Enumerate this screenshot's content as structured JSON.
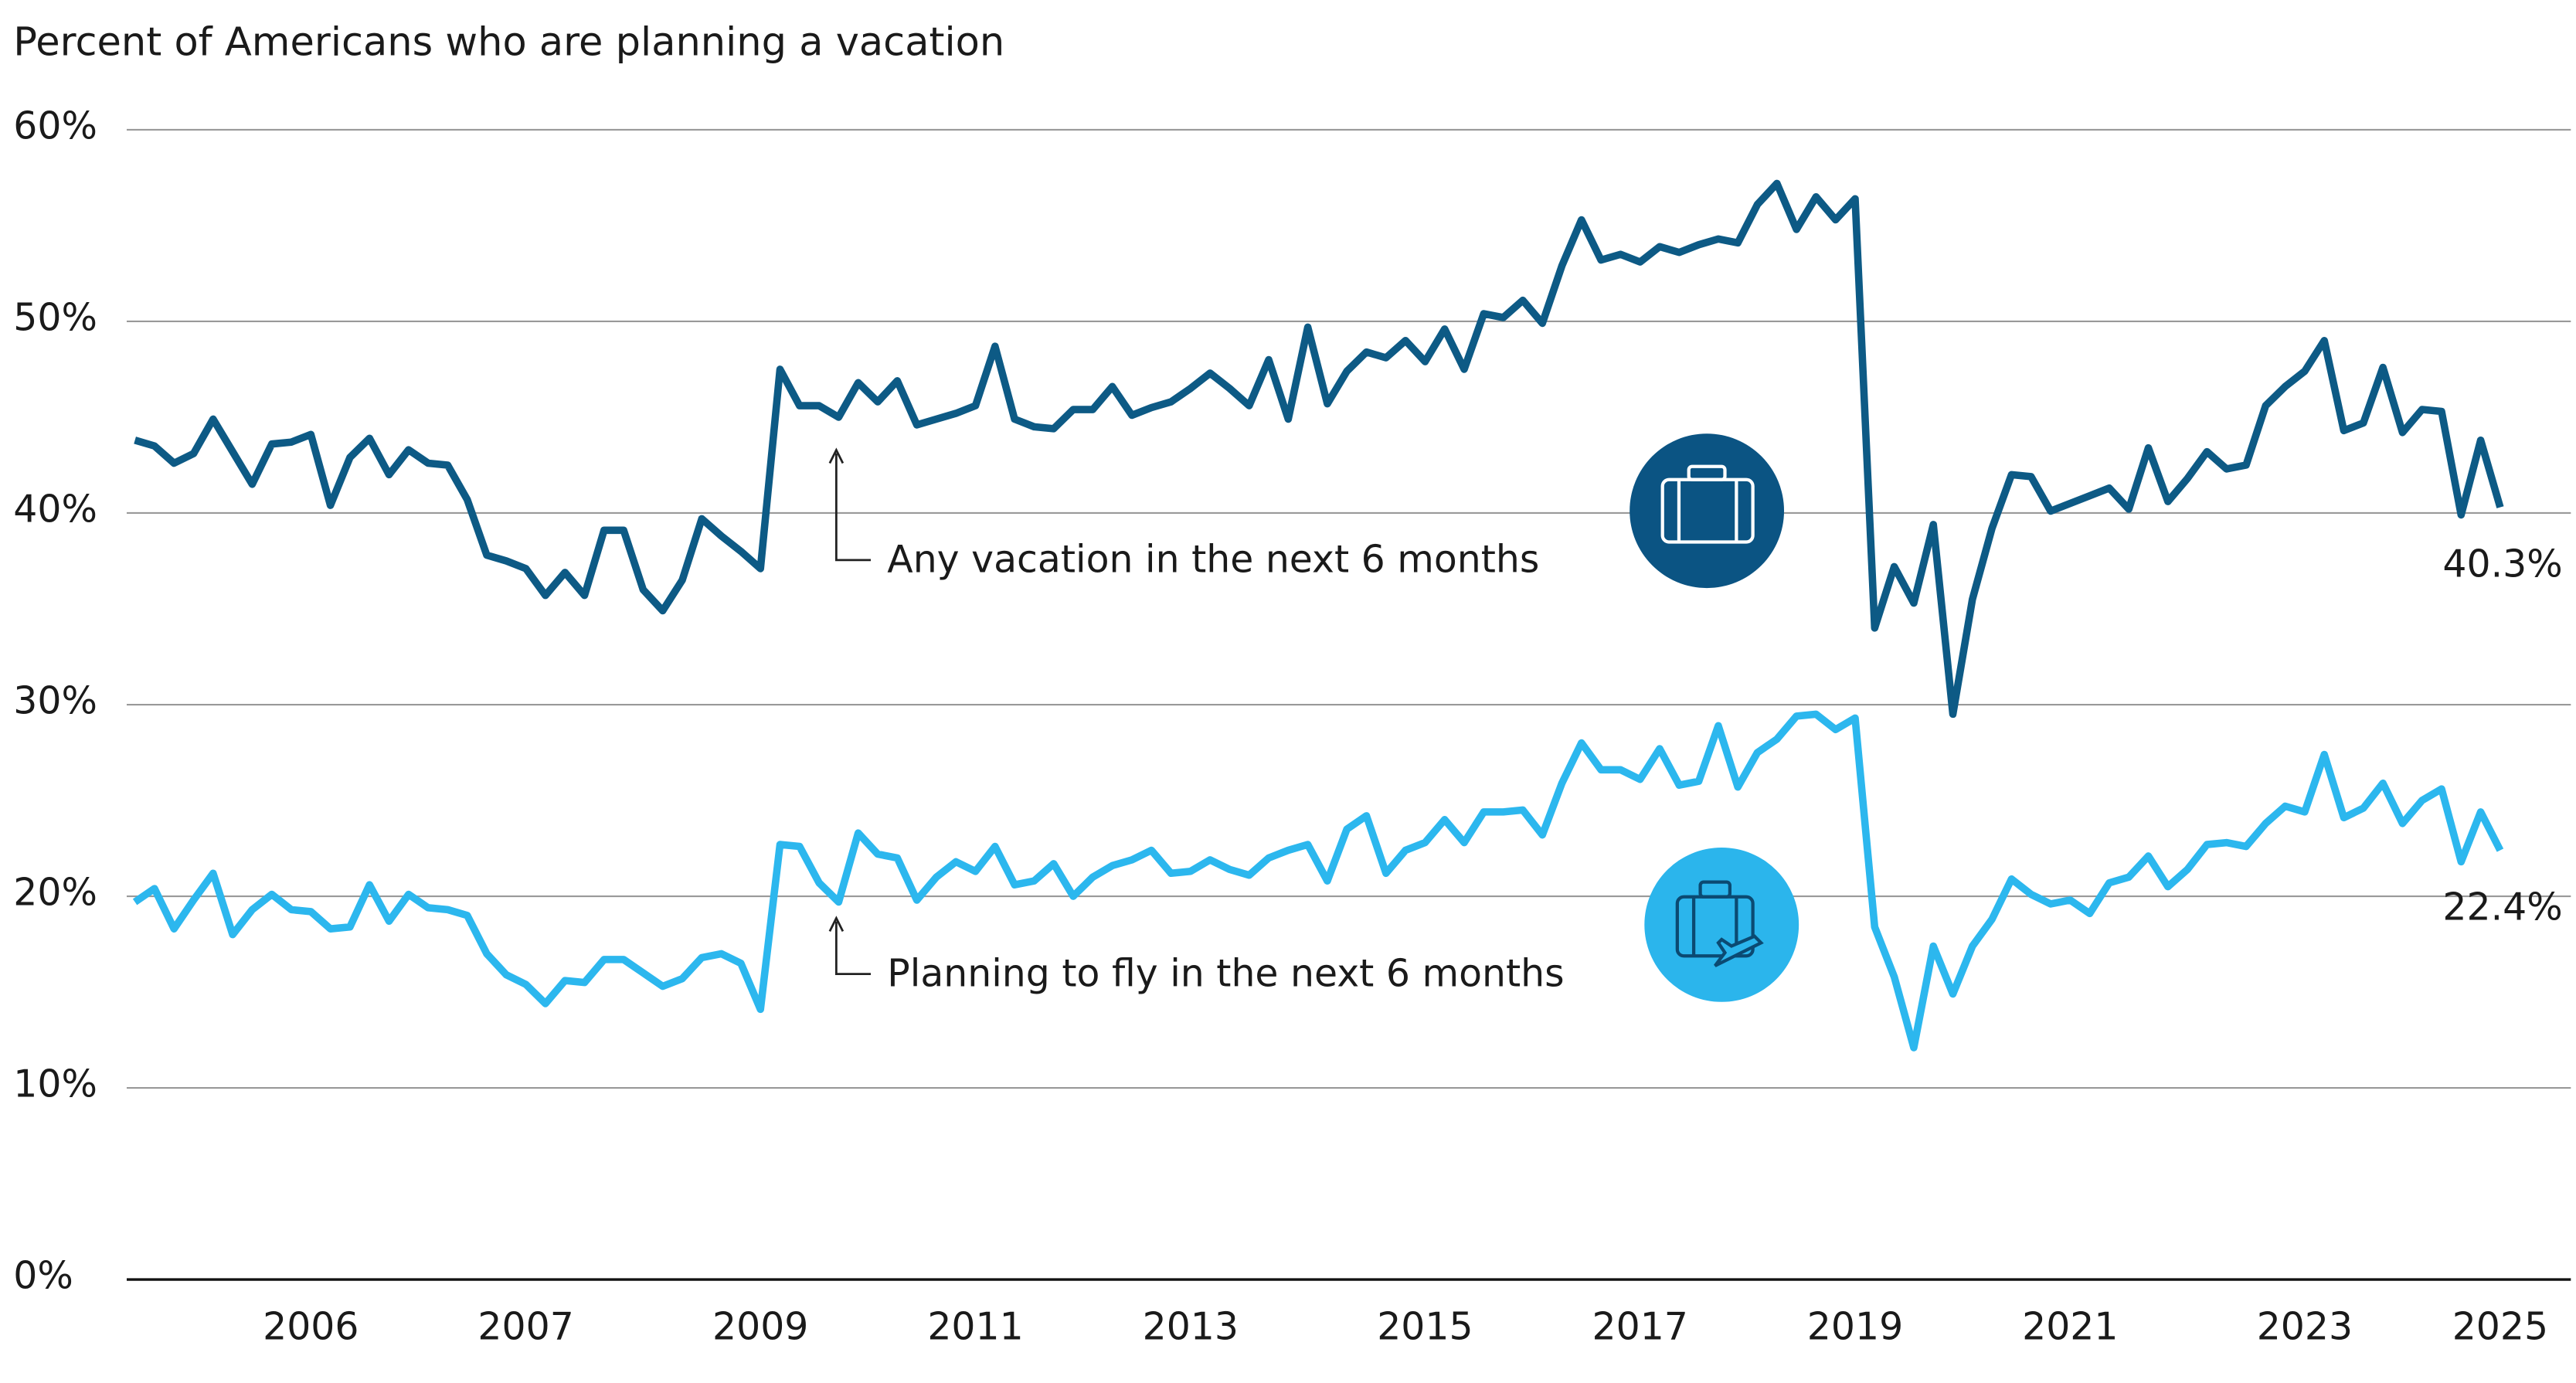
{
  "chart_data": {
    "type": "line",
    "title": "Percent of Americans who are planning a vacation",
    "categories": [
      null,
      null,
      null,
      null,
      null,
      null,
      null,
      null,
      null,
      "2006",
      null,
      null,
      null,
      null,
      null,
      null,
      null,
      null,
      null,
      null,
      "2007",
      null,
      null,
      null,
      null,
      null,
      null,
      null,
      null,
      null,
      null,
      null,
      "2009",
      null,
      null,
      null,
      null,
      null,
      null,
      null,
      null,
      null,
      null,
      "2011",
      null,
      null,
      null,
      null,
      null,
      null,
      null,
      null,
      null,
      null,
      "2013",
      null,
      null,
      null,
      null,
      null,
      null,
      null,
      null,
      null,
      null,
      null,
      "2015",
      null,
      null,
      null,
      null,
      null,
      null,
      null,
      null,
      null,
      null,
      "2017",
      null,
      null,
      null,
      null,
      null,
      null,
      null,
      null,
      null,
      null,
      "2019",
      null,
      null,
      null,
      null,
      null,
      null,
      null,
      null,
      null,
      null,
      "2021",
      null,
      null,
      null,
      null,
      null,
      null,
      null,
      null,
      null,
      null,
      null,
      "2023",
      null,
      null,
      null,
      null,
      null,
      null,
      null,
      null,
      null,
      "2025"
    ],
    "series": [
      {
        "name": "Any vacation in the next 6 months",
        "color": "#0d5a85",
        "values": [
          43.8,
          43.5,
          42.6,
          43.1,
          44.9,
          43.2,
          41.5,
          43.6,
          43.7,
          44.1,
          40.4,
          42.9,
          43.9,
          42.0,
          43.3,
          42.6,
          42.5,
          40.7,
          37.8,
          37.5,
          37.1,
          35.7,
          36.9,
          35.7,
          39.1,
          39.1,
          36.0,
          34.9,
          36.5,
          39.7,
          38.8,
          38.0,
          37.1,
          47.5,
          45.6,
          45.6,
          45.0,
          46.8,
          45.8,
          46.9,
          44.6,
          44.9,
          45.2,
          45.6,
          48.7,
          44.9,
          44.5,
          44.4,
          45.4,
          45.4,
          46.6,
          45.1,
          45.5,
          45.8,
          46.5,
          47.3,
          46.5,
          45.6,
          48.0,
          44.9,
          49.7,
          45.7,
          47.4,
          48.4,
          48.1,
          49.0,
          47.9,
          49.6,
          47.5,
          50.4,
          50.2,
          51.1,
          49.9,
          52.9,
          55.3,
          53.2,
          53.5,
          53.1,
          53.9,
          53.6,
          54.0,
          54.3,
          54.1,
          56.1,
          57.2,
          54.8,
          56.5,
          55.3,
          56.4,
          34.0,
          37.2,
          35.3,
          39.4,
          29.5,
          35.5,
          39.2,
          42.0,
          41.9,
          40.1,
          40.5,
          40.9,
          41.3,
          40.2,
          43.4,
          40.6,
          41.8,
          43.2,
          42.3,
          42.5,
          45.6,
          46.6,
          47.4,
          49.0,
          44.3,
          44.7,
          47.6,
          44.2,
          45.4,
          45.3,
          39.9,
          43.8,
          40.3
        ],
        "value_labels": [
          null,
          null,
          null,
          null,
          null,
          null,
          null,
          null,
          null,
          null,
          null,
          null,
          null,
          null,
          null,
          null,
          null,
          null,
          null,
          null,
          null,
          null,
          null,
          null,
          null,
          null,
          null,
          null,
          null,
          null,
          null,
          null,
          null,
          null,
          null,
          null,
          null,
          null,
          null,
          null,
          null,
          null,
          null,
          null,
          null,
          null,
          null,
          null,
          null,
          null,
          null,
          null,
          null,
          null,
          null,
          null,
          null,
          null,
          null,
          null,
          null,
          null,
          null,
          null,
          null,
          null,
          null,
          null,
          null,
          null,
          null,
          null,
          null,
          null,
          null,
          null,
          null,
          null,
          null,
          null,
          null,
          null,
          null,
          null,
          null,
          null,
          null,
          null,
          null,
          null,
          null,
          null,
          null,
          null,
          null,
          null,
          null,
          null,
          null,
          null,
          null,
          null,
          null,
          null,
          null,
          null,
          null,
          null,
          null,
          null,
          null,
          null,
          null,
          null,
          null,
          null,
          null,
          null,
          null,
          null,
          null,
          "40.3%"
        ]
      },
      {
        "name": "Planning to fly in the next 6 months",
        "color": "#2cb7ee",
        "values": [
          19.7,
          20.4,
          18.3,
          19.8,
          21.2,
          18.0,
          19.3,
          20.1,
          19.3,
          19.2,
          18.3,
          18.4,
          20.6,
          18.7,
          20.1,
          19.4,
          19.3,
          19.0,
          17.0,
          15.9,
          15.4,
          14.4,
          15.6,
          15.5,
          16.7,
          16.7,
          16.0,
          15.3,
          15.7,
          16.8,
          17.0,
          16.5,
          14.1,
          22.7,
          22.6,
          20.7,
          19.7,
          23.3,
          22.2,
          22.0,
          19.8,
          21.0,
          21.8,
          21.3,
          22.6,
          20.6,
          20.8,
          21.7,
          20.0,
          21.0,
          21.6,
          21.9,
          22.4,
          21.2,
          21.3,
          21.9,
          21.4,
          21.1,
          22.0,
          22.4,
          22.7,
          20.8,
          23.5,
          24.2,
          21.2,
          22.4,
          22.8,
          24.0,
          22.8,
          24.4,
          24.4,
          24.5,
          23.2,
          25.9,
          28.0,
          26.6,
          26.6,
          26.1,
          27.7,
          25.8,
          26.0,
          28.9,
          25.7,
          27.5,
          28.2,
          29.4,
          29.5,
          28.7,
          29.3,
          18.4,
          15.8,
          12.1,
          17.4,
          14.9,
          17.4,
          18.8,
          20.9,
          20.1,
          19.6,
          19.8,
          19.1,
          20.7,
          21.0,
          22.1,
          20.5,
          21.4,
          22.7,
          22.8,
          22.6,
          23.8,
          24.7,
          24.4,
          27.4,
          24.1,
          24.6,
          25.9,
          23.8,
          25.0,
          25.6,
          21.8,
          24.4,
          22.4
        ],
        "value_labels": [
          null,
          null,
          null,
          null,
          null,
          null,
          null,
          null,
          null,
          null,
          null,
          null,
          null,
          null,
          null,
          null,
          null,
          null,
          null,
          null,
          null,
          null,
          null,
          null,
          null,
          null,
          null,
          null,
          null,
          null,
          null,
          null,
          null,
          null,
          null,
          null,
          null,
          null,
          null,
          null,
          null,
          null,
          null,
          null,
          null,
          null,
          null,
          null,
          null,
          null,
          null,
          null,
          null,
          null,
          null,
          null,
          null,
          null,
          null,
          null,
          null,
          null,
          null,
          null,
          null,
          null,
          null,
          null,
          null,
          null,
          null,
          null,
          null,
          null,
          null,
          null,
          null,
          null,
          null,
          null,
          null,
          null,
          null,
          null,
          null,
          null,
          null,
          null,
          null,
          null,
          null,
          null,
          null,
          null,
          null,
          null,
          null,
          null,
          null,
          null,
          null,
          null,
          null,
          null,
          null,
          null,
          null,
          null,
          null,
          null,
          null,
          null,
          null,
          null,
          null,
          null,
          null,
          null,
          null,
          null,
          null,
          "22.4%"
        ]
      }
    ],
    "ylim": [
      0,
      60
    ],
    "yticks": [
      {
        "value": 0,
        "label": "0%"
      },
      {
        "value": 10,
        "label": "10%"
      },
      {
        "value": 20,
        "label": "20%"
      },
      {
        "value": 30,
        "label": "30%"
      },
      {
        "value": 40,
        "label": "40%"
      },
      {
        "value": 50,
        "label": "50%"
      },
      {
        "value": 60,
        "label": "60%"
      }
    ],
    "grid": true
  }
}
